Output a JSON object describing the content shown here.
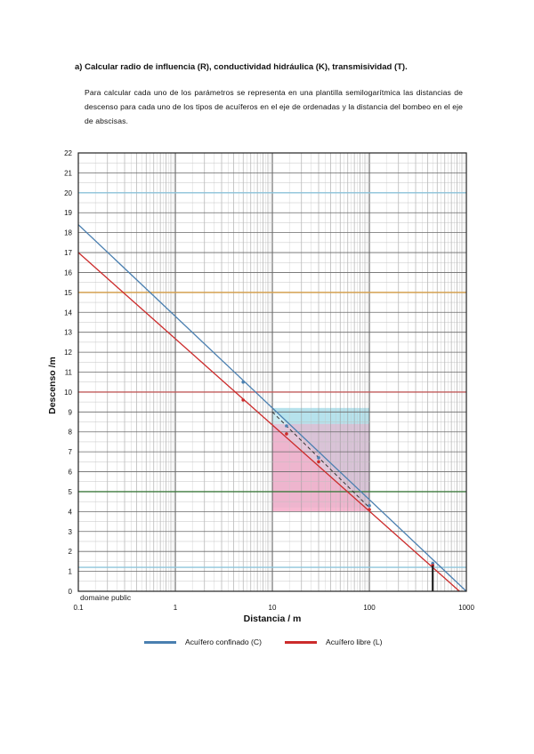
{
  "document": {
    "heading": "a) Calcular radio de influencia (R), conductividad hidráulica (K), transmisividad (T).",
    "paragraph": "Para calcular cada uno de los parámetros se representa en una plantilla semilogarítmica las distancias de descenso para cada uno de los tipos de acuíferos en el eje de ordenadas y la distancia del bombeo en el eje de abscisas."
  },
  "chart_data": {
    "type": "line",
    "xscale": "log",
    "xlim": [
      0.1,
      1000
    ],
    "ylim": [
      0,
      22
    ],
    "xlabel": "Distancia / m",
    "ylabel": "Descenso /m",
    "x_ticks": [
      "0.1",
      "1",
      "10",
      "100",
      "1000"
    ],
    "y_ticks": [
      "0",
      "1",
      "2",
      "3",
      "4",
      "5",
      "6",
      "7",
      "8",
      "9",
      "10",
      "11",
      "12",
      "13",
      "14",
      "15",
      "16",
      "17",
      "18",
      "19",
      "20",
      "21",
      "22"
    ],
    "watermark": "domaine public",
    "grid": true,
    "legend_position": "bottom",
    "colors": {
      "confinado": "#4a7fb0",
      "libre": "#cc2b2b",
      "cyan_box": "#a6dce8",
      "pink_box": "#f5a9c6",
      "ref_blue": "#8ec5dc",
      "ref_red": "#c05a5a",
      "ref_green": "#3e7a3e",
      "ref_orange": "#d4a050"
    },
    "series": [
      {
        "name": "Acuífero confinado (C)",
        "key": "confinado",
        "line": [
          [
            0.1,
            18.4
          ],
          [
            1000,
            0
          ]
        ],
        "points": [
          [
            5,
            10.5
          ],
          [
            14,
            8.3
          ],
          [
            30,
            6.7
          ],
          [
            100,
            4.3
          ],
          [
            450,
            1.4
          ]
        ]
      },
      {
        "name": "Acuífero libre (L)",
        "key": "libre",
        "line": [
          [
            0.1,
            17.0
          ],
          [
            850,
            0
          ]
        ],
        "points": [
          [
            5,
            9.6
          ],
          [
            14,
            7.9
          ],
          [
            30,
            6.5
          ],
          [
            100,
            4.1
          ],
          [
            450,
            1.3
          ]
        ]
      }
    ],
    "dashed_line": [
      [
        10,
        9.0
      ],
      [
        100,
        4.2
      ]
    ],
    "shaded_regions": [
      {
        "key": "cyan_box",
        "x": [
          10,
          100
        ],
        "y": [
          4.2,
          9.2
        ],
        "shape": "upper-triangle"
      },
      {
        "key": "pink_box",
        "x": [
          10,
          100
        ],
        "y": [
          4.0,
          8.4
        ],
        "shape": "lower-triangle"
      }
    ],
    "reference_lines": [
      {
        "key": "ref_blue",
        "y": 20
      },
      {
        "key": "ref_orange",
        "y": 15
      },
      {
        "key": "ref_red",
        "y": 10
      },
      {
        "key": "ref_green",
        "y": 5
      },
      {
        "key": "ref_blue",
        "y": 1.2
      }
    ],
    "vertical_markers": [
      {
        "x": 450,
        "y": [
          0,
          1.3
        ]
      }
    ]
  }
}
